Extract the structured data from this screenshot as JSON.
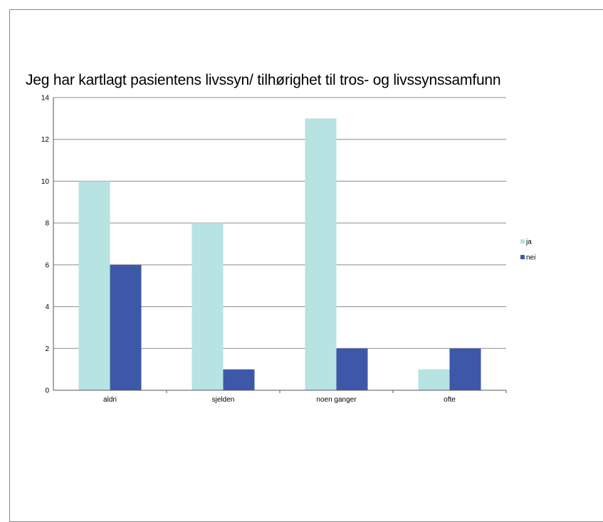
{
  "chart_data": {
    "type": "bar",
    "title": "Jeg har kartlagt pasientens livssyn/ tilhørighet til tros- og livssynssamfunn",
    "categories": [
      "aldri",
      "sjelden",
      "noen ganger",
      "ofte"
    ],
    "series": [
      {
        "name": "ja",
        "values": [
          10,
          8,
          13,
          1
        ],
        "color": "#b7e3e2"
      },
      {
        "name": "nei",
        "values": [
          6,
          1,
          2,
          2
        ],
        "color": "#3d58a8"
      }
    ],
    "xlabel": "",
    "ylabel": "",
    "ylim": [
      0,
      14
    ],
    "yticks": [
      0,
      2,
      4,
      6,
      8,
      10,
      12,
      14
    ],
    "grid": true,
    "legend_position": "right"
  }
}
